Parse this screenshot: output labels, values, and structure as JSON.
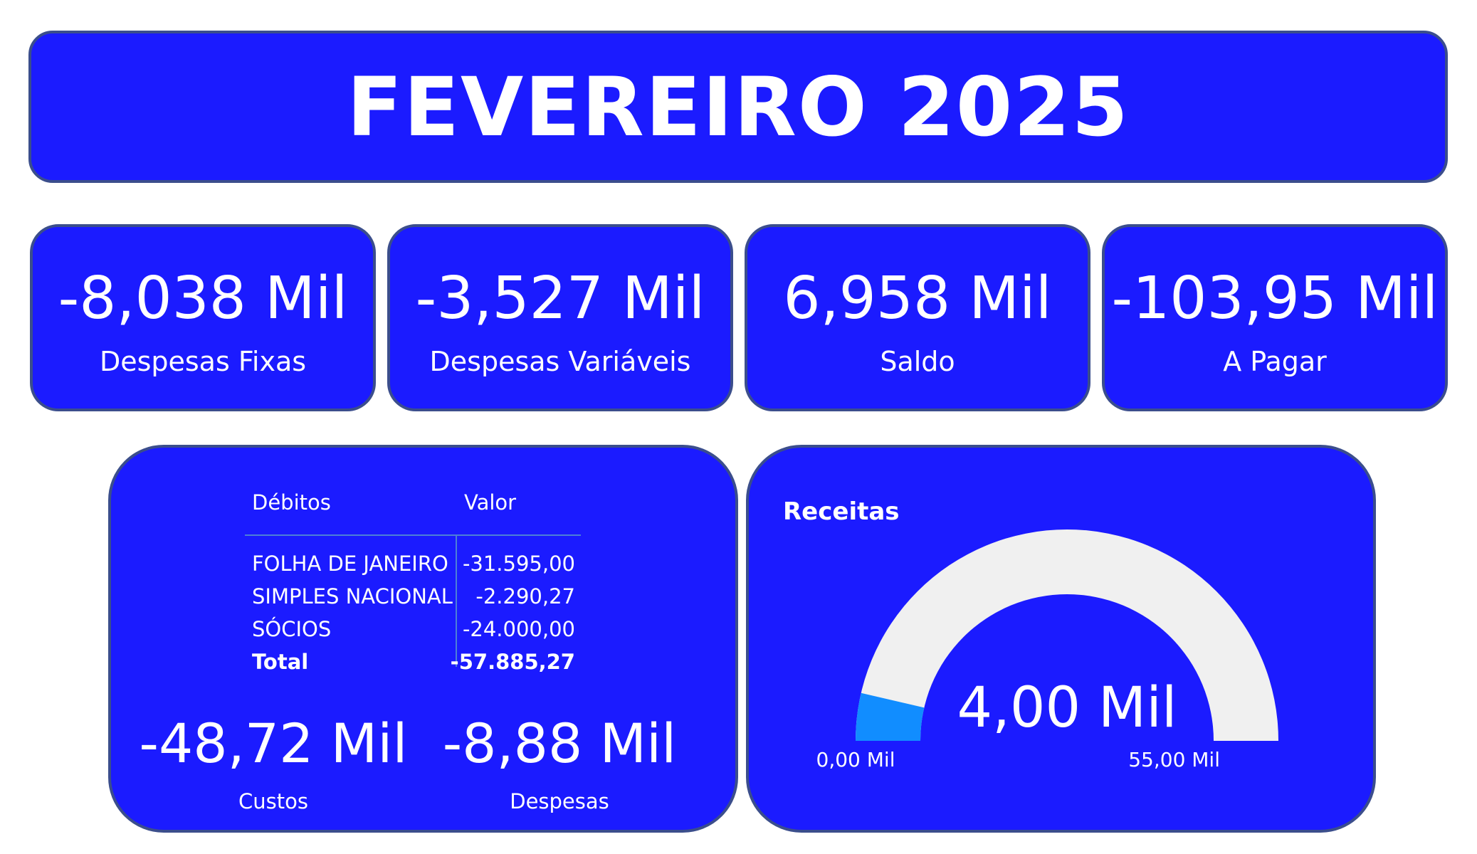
{
  "title": "FEVEREIRO 2025",
  "kpis": [
    {
      "value": "-8,038 Mil",
      "label": "Despesas Fixas"
    },
    {
      "value": "-3,527 Mil",
      "label": "Despesas Variáveis"
    },
    {
      "value": "6,958 Mil",
      "label": "Saldo"
    },
    {
      "value": "-103,95 Mil",
      "label": "A Pagar"
    }
  ],
  "debits_table": {
    "headers": [
      "Débitos",
      "Valor"
    ],
    "rows": [
      {
        "name": "FOLHA DE JANEIRO",
        "value": "-31.595,00"
      },
      {
        "name": "SIMPLES NACIONAL",
        "value": "-2.290,27"
      },
      {
        "name": "SÓCIOS",
        "value": "-24.000,00"
      }
    ],
    "total": {
      "name": "Total",
      "value": "-57.885,27"
    }
  },
  "metrics": [
    {
      "value": "-48,72 Mil",
      "label": "Custos"
    },
    {
      "value": "-8,88 Mil",
      "label": "Despesas"
    }
  ],
  "chart_data": {
    "type": "gauge",
    "title": "Receitas",
    "value": 4.0,
    "min": 0,
    "max": 55,
    "value_label": "4,00 Mil",
    "min_label": "0,00 Mil",
    "max_label": "55,00 Mil",
    "fill_color": "#118dff",
    "track_color": "#f0f0f0"
  },
  "colors": {
    "panel_bg": "#1b1bff",
    "panel_border": "#3b4e8c",
    "text": "#ffffff",
    "table_line": "#4d7fd6"
  }
}
